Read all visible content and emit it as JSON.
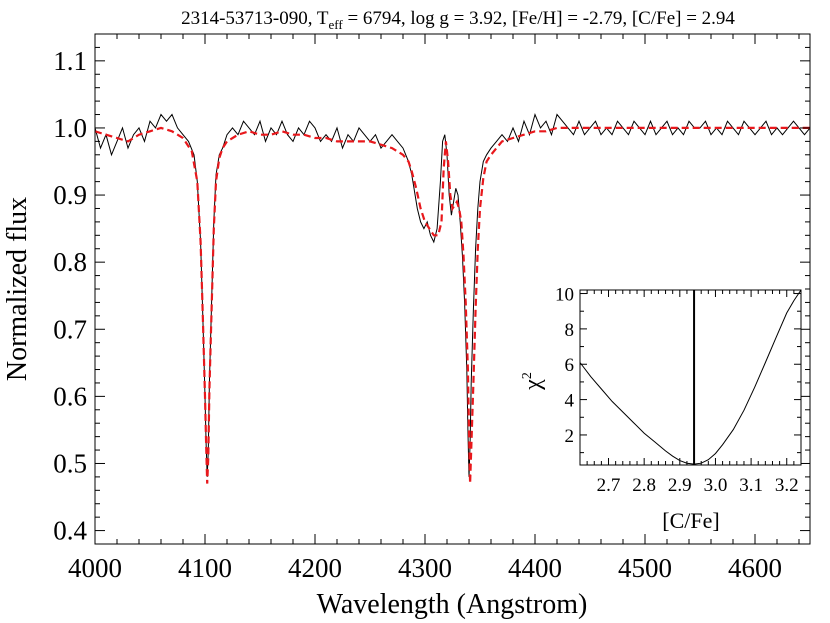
{
  "chart_data": [
    {
      "type": "line",
      "title": {
        "id": "2314-53713-090, T",
        "teff_sub": "eff",
        "rest": " = 6794, log g = 3.92, [Fe/H] = -2.79, [C/Fe] = 2.94"
      },
      "xlabel": "Wavelength (Angstrom)",
      "ylabel": "Normalized flux",
      "xlim": [
        4000,
        4650
      ],
      "ylim": [
        0.38,
        1.14
      ],
      "xticks": [
        "4000",
        "4100",
        "4200",
        "4300",
        "4400",
        "4500",
        "4600"
      ],
      "yticks": [
        "0.4",
        "0.5",
        "0.6",
        "0.7",
        "0.8",
        "0.9",
        "1.0",
        "1.1"
      ],
      "series": [
        {
          "style": "observed",
          "color": "#000000",
          "x": [
            4000,
            4005,
            4010,
            4015,
            4020,
            4025,
            4030,
            4035,
            4040,
            4045,
            4050,
            4055,
            4060,
            4065,
            4070,
            4075,
            4080,
            4085,
            4090,
            4093,
            4096,
            4098,
            4100,
            4101,
            4102,
            4103,
            4104,
            4106,
            4108,
            4110,
            4113,
            4116,
            4120,
            4125,
            4130,
            4135,
            4140,
            4145,
            4150,
            4155,
            4160,
            4165,
            4170,
            4175,
            4180,
            4185,
            4190,
            4195,
            4200,
            4205,
            4210,
            4215,
            4220,
            4225,
            4230,
            4235,
            4240,
            4245,
            4250,
            4255,
            4260,
            4265,
            4270,
            4275,
            4280,
            4285,
            4288,
            4290,
            4293,
            4296,
            4299,
            4302,
            4305,
            4308,
            4311,
            4314,
            4316,
            4318,
            4320,
            4322,
            4324,
            4326,
            4328,
            4330,
            4332,
            4334,
            4336,
            4338,
            4339,
            4340,
            4341,
            4342,
            4344,
            4346,
            4348,
            4350,
            4353,
            4356,
            4360,
            4365,
            4370,
            4375,
            4380,
            4385,
            4390,
            4395,
            4400,
            4405,
            4410,
            4415,
            4420,
            4425,
            4430,
            4435,
            4440,
            4445,
            4450,
            4455,
            4460,
            4465,
            4470,
            4475,
            4480,
            4485,
            4490,
            4495,
            4500,
            4505,
            4510,
            4515,
            4520,
            4525,
            4530,
            4535,
            4540,
            4545,
            4550,
            4555,
            4560,
            4565,
            4570,
            4575,
            4580,
            4585,
            4590,
            4595,
            4600,
            4605,
            4610,
            4615,
            4620,
            4625,
            4630,
            4635,
            4640,
            4645,
            4650
          ],
          "y": [
            1.0,
            0.97,
            0.99,
            0.96,
            0.98,
            1.0,
            0.97,
            0.99,
            1.0,
            0.98,
            1.01,
            1.0,
            1.02,
            1.01,
            1.02,
            1.0,
            0.99,
            0.98,
            0.96,
            0.92,
            0.83,
            0.72,
            0.6,
            0.53,
            0.48,
            0.52,
            0.62,
            0.74,
            0.86,
            0.93,
            0.96,
            0.97,
            0.99,
            1.0,
            0.99,
            1.01,
            1.0,
            0.99,
            1.01,
            0.98,
            1.0,
            0.99,
            1.01,
            0.99,
            0.98,
            1.0,
            0.99,
            1.01,
            1.0,
            0.98,
            0.99,
            0.98,
            1.0,
            0.97,
            0.99,
            0.98,
            1.0,
            0.99,
            0.98,
            0.99,
            0.97,
            0.98,
            0.99,
            0.98,
            0.97,
            0.95,
            0.93,
            0.91,
            0.88,
            0.86,
            0.85,
            0.86,
            0.84,
            0.83,
            0.85,
            0.92,
            0.98,
            0.99,
            0.96,
            0.9,
            0.87,
            0.89,
            0.91,
            0.9,
            0.86,
            0.81,
            0.74,
            0.64,
            0.55,
            0.48,
            0.53,
            0.62,
            0.73,
            0.82,
            0.88,
            0.92,
            0.95,
            0.96,
            0.97,
            0.98,
            0.99,
            0.98,
            1.0,
            0.98,
            1.01,
            0.99,
            1.02,
            1.0,
            1.01,
            0.99,
            1.02,
            1.01,
            1.0,
            0.99,
            1.01,
            0.99,
            1.0,
            1.01,
            0.99,
            1.0,
            0.99,
            1.01,
            1.0,
            0.99,
            1.01,
            1.0,
            0.99,
            1.01,
            0.99,
            1.0,
            1.01,
            0.99,
            1.0,
            0.99,
            1.01,
            1.0,
            1.0,
            1.01,
            0.99,
            1.0,
            0.99,
            1.01,
            1.0,
            0.99,
            1.01,
            1.0,
            0.99,
            1.0,
            1.01,
            0.99,
            1.0,
            0.99,
            1.0,
            1.01,
            1.0,
            0.99,
            1.0
          ]
        },
        {
          "style": "model",
          "color": "#e8181c",
          "x": [
            4000,
            4010,
            4020,
            4030,
            4040,
            4050,
            4060,
            4070,
            4080,
            4088,
            4093,
            4096,
            4098,
            4100,
            4101,
            4102,
            4103,
            4104,
            4106,
            4108,
            4110,
            4113,
            4116,
            4120,
            4130,
            4140,
            4150,
            4160,
            4170,
            4180,
            4190,
            4200,
            4210,
            4220,
            4230,
            4240,
            4250,
            4260,
            4270,
            4280,
            4285,
            4288,
            4292,
            4296,
            4300,
            4304,
            4308,
            4312,
            4315,
            4317,
            4319,
            4321,
            4323,
            4325,
            4327,
            4329,
            4331,
            4333,
            4335,
            4337,
            4339,
            4340,
            4341,
            4342,
            4344,
            4346,
            4348,
            4350,
            4353,
            4356,
            4360,
            4365,
            4370,
            4380,
            4390,
            4400,
            4410,
            4420,
            4430,
            4440,
            4450,
            4460,
            4470,
            4480,
            4490,
            4500,
            4510,
            4520,
            4530,
            4540,
            4550,
            4560,
            4570,
            4580,
            4590,
            4600,
            4610,
            4620,
            4630,
            4640,
            4650
          ],
          "y": [
            0.995,
            0.99,
            0.985,
            0.98,
            0.99,
            0.995,
            1.0,
            0.995,
            0.985,
            0.965,
            0.92,
            0.83,
            0.72,
            0.6,
            0.53,
            0.47,
            0.51,
            0.61,
            0.73,
            0.85,
            0.92,
            0.955,
            0.97,
            0.98,
            0.99,
            0.995,
            0.99,
            0.99,
            0.995,
            0.99,
            0.99,
            0.985,
            0.985,
            0.98,
            0.98,
            0.98,
            0.98,
            0.975,
            0.97,
            0.96,
            0.95,
            0.935,
            0.91,
            0.88,
            0.86,
            0.85,
            0.84,
            0.84,
            0.86,
            0.94,
            0.98,
            0.95,
            0.9,
            0.88,
            0.885,
            0.89,
            0.88,
            0.86,
            0.81,
            0.74,
            0.64,
            0.55,
            0.47,
            0.52,
            0.62,
            0.73,
            0.82,
            0.88,
            0.925,
            0.95,
            0.96,
            0.97,
            0.98,
            0.985,
            0.99,
            0.995,
            0.995,
            1.0,
            1.0,
            1.0,
            1.0,
            1.0,
            1.0,
            1.0,
            1.0,
            1.0,
            1.0,
            1.0,
            1.0,
            1.0,
            1.0,
            1.0,
            1.0,
            1.0,
            1.0,
            1.0,
            1.0,
            1.0,
            1.0,
            1.0,
            1.0
          ]
        }
      ]
    },
    {
      "type": "line",
      "xlabel": "[C/Fe]",
      "ylabel": "χ",
      "ylabel_sup": "2",
      "xlim": [
        2.62,
        3.24
      ],
      "ylim": [
        0.3,
        10.2
      ],
      "xticks": [
        "2.7",
        "2.8",
        "2.9",
        "3.0",
        "3.1",
        "3.2"
      ],
      "yticks": [
        "2",
        "4",
        "6",
        "8",
        "10"
      ],
      "best_fit": 2.94,
      "series": [
        {
          "color": "#000000",
          "x": [
            2.62,
            2.65,
            2.68,
            2.71,
            2.74,
            2.77,
            2.8,
            2.83,
            2.86,
            2.88,
            2.9,
            2.92,
            2.94,
            2.96,
            2.98,
            3.0,
            3.02,
            3.05,
            3.08,
            3.11,
            3.14,
            3.17,
            3.2,
            3.22,
            3.24
          ],
          "y": [
            6.1,
            5.3,
            4.6,
            3.9,
            3.3,
            2.7,
            2.1,
            1.6,
            1.1,
            0.8,
            0.55,
            0.4,
            0.35,
            0.4,
            0.6,
            0.95,
            1.45,
            2.3,
            3.4,
            4.7,
            6.1,
            7.5,
            8.9,
            9.6,
            10.2
          ]
        }
      ]
    }
  ]
}
